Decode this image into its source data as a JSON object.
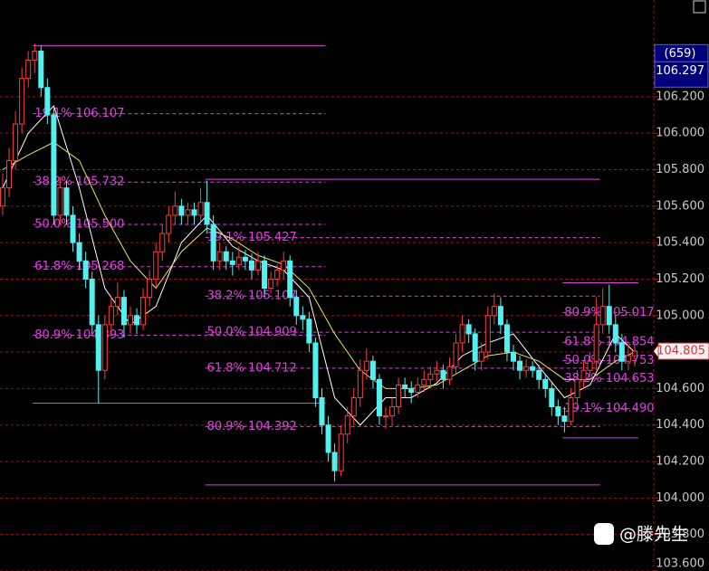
{
  "chart_data": {
    "type": "candlestick",
    "ylim": [
      103.6,
      106.73
    ],
    "yticks": [
      {
        "value": 103.6,
        "label": "103.600"
      },
      {
        "value": 103.8,
        "label": "103.800"
      },
      {
        "value": 104.0,
        "label": "104.000"
      },
      {
        "value": 104.2,
        "label": "104.200"
      },
      {
        "value": 104.4,
        "label": "104.400"
      },
      {
        "value": 104.6,
        "label": "104.600"
      },
      {
        "value": 104.8,
        "label": "104.800"
      },
      {
        "value": 105.0,
        "label": "105.000"
      },
      {
        "value": 105.2,
        "label": "105.200"
      },
      {
        "value": 105.4,
        "label": "105.400"
      },
      {
        "value": 105.6,
        "label": "105.600"
      },
      {
        "value": 105.8,
        "label": "105.800"
      },
      {
        "value": 106.0,
        "label": "106.000"
      },
      {
        "value": 106.2,
        "label": "106.200"
      }
    ],
    "grid": true,
    "up_color": "#ff3c3c",
    "down_color": "#54f0f0",
    "fib_color": "#e040e0",
    "candles": [
      [
        105.6,
        105.78,
        105.55,
        105.7
      ],
      [
        105.7,
        105.92,
        105.65,
        105.85
      ],
      [
        105.85,
        106.12,
        105.8,
        106.05
      ],
      [
        106.05,
        106.36,
        106.0,
        106.3
      ],
      [
        106.3,
        106.45,
        106.25,
        106.4
      ],
      [
        106.4,
        106.49,
        106.33,
        106.45
      ],
      [
        106.45,
        106.48,
        106.2,
        106.25
      ],
      [
        106.25,
        106.3,
        106.05,
        106.1
      ],
      [
        106.1,
        106.15,
        105.5,
        105.55
      ],
      [
        105.55,
        105.76,
        105.5,
        105.7
      ],
      [
        105.7,
        105.74,
        105.5,
        105.55
      ],
      [
        105.55,
        105.6,
        105.35,
        105.4
      ],
      [
        105.4,
        105.45,
        105.25,
        105.3
      ],
      [
        105.3,
        105.35,
        105.15,
        105.2
      ],
      [
        105.2,
        105.24,
        104.9,
        104.95
      ],
      [
        104.95,
        105.0,
        104.52,
        104.7
      ],
      [
        104.7,
        105.0,
        104.65,
        104.95
      ],
      [
        104.95,
        105.1,
        104.9,
        105.05
      ],
      [
        105.05,
        105.18,
        105.0,
        105.1
      ],
      [
        105.1,
        105.14,
        104.88,
        104.95
      ],
      [
        104.95,
        105.05,
        104.9,
        105.0
      ],
      [
        105.0,
        105.04,
        104.9,
        104.95
      ],
      [
        104.95,
        105.15,
        104.92,
        105.1
      ],
      [
        105.1,
        105.25,
        105.05,
        105.2
      ],
      [
        105.2,
        105.4,
        105.15,
        105.35
      ],
      [
        105.35,
        105.5,
        105.3,
        105.45
      ],
      [
        105.45,
        105.6,
        105.4,
        105.55
      ],
      [
        105.55,
        105.68,
        105.5,
        105.6
      ],
      [
        105.6,
        105.64,
        105.5,
        105.55
      ],
      [
        105.55,
        105.62,
        105.5,
        105.58
      ],
      [
        105.58,
        105.62,
        105.5,
        105.55
      ],
      [
        105.55,
        105.7,
        105.52,
        105.62
      ],
      [
        105.62,
        105.74,
        105.45,
        105.5
      ],
      [
        105.5,
        105.55,
        105.25,
        105.3
      ],
      [
        105.3,
        105.4,
        105.25,
        105.35
      ],
      [
        105.35,
        105.38,
        105.25,
        105.3
      ],
      [
        105.3,
        105.35,
        105.22,
        105.28
      ],
      [
        105.28,
        105.38,
        105.25,
        105.32
      ],
      [
        105.32,
        105.36,
        105.25,
        105.3
      ],
      [
        105.3,
        105.34,
        105.2,
        105.25
      ],
      [
        105.25,
        105.35,
        105.22,
        105.3
      ],
      [
        105.3,
        105.33,
        105.1,
        105.15
      ],
      [
        105.15,
        105.24,
        105.12,
        105.2
      ],
      [
        105.2,
        105.28,
        105.16,
        105.25
      ],
      [
        105.25,
        105.35,
        105.2,
        105.3
      ],
      [
        105.3,
        105.33,
        105.05,
        105.1
      ],
      [
        105.1,
        105.14,
        104.95,
        105.0
      ],
      [
        105.0,
        105.05,
        104.92,
        104.98
      ],
      [
        104.98,
        105.02,
        104.8,
        104.85
      ],
      [
        104.85,
        104.88,
        104.5,
        104.55
      ],
      [
        104.55,
        104.6,
        104.35,
        104.4
      ],
      [
        104.4,
        104.45,
        104.2,
        104.25
      ],
      [
        104.25,
        104.3,
        104.09,
        104.15
      ],
      [
        104.15,
        104.4,
        104.12,
        104.35
      ],
      [
        104.35,
        104.5,
        104.3,
        104.45
      ],
      [
        104.45,
        104.6,
        104.4,
        104.55
      ],
      [
        104.55,
        104.76,
        104.5,
        104.7
      ],
      [
        104.7,
        104.82,
        104.65,
        104.75
      ],
      [
        104.75,
        104.78,
        104.6,
        104.65
      ],
      [
        104.65,
        104.68,
        104.4,
        104.45
      ],
      [
        104.45,
        104.5,
        104.38,
        104.45
      ],
      [
        104.45,
        104.55,
        104.4,
        104.5
      ],
      [
        104.5,
        104.66,
        104.46,
        104.62
      ],
      [
        104.62,
        104.66,
        104.55,
        104.6
      ],
      [
        104.6,
        104.64,
        104.52,
        104.58
      ],
      [
        104.58,
        104.66,
        104.55,
        104.62
      ],
      [
        104.62,
        104.7,
        104.58,
        104.65
      ],
      [
        104.65,
        104.72,
        104.6,
        104.68
      ],
      [
        104.68,
        104.75,
        104.64,
        104.7
      ],
      [
        104.7,
        104.73,
        104.6,
        104.65
      ],
      [
        104.65,
        104.77,
        104.62,
        104.72
      ],
      [
        104.72,
        104.9,
        104.68,
        104.85
      ],
      [
        104.85,
        105.0,
        104.8,
        104.95
      ],
      [
        104.95,
        104.98,
        104.85,
        104.9
      ],
      [
        104.9,
        104.93,
        104.7,
        104.75
      ],
      [
        104.75,
        104.85,
        104.7,
        104.8
      ],
      [
        104.8,
        105.05,
        104.76,
        105.0
      ],
      [
        105.0,
        105.12,
        104.95,
        105.05
      ],
      [
        105.05,
        105.1,
        104.9,
        104.95
      ],
      [
        104.95,
        104.98,
        104.75,
        104.8
      ],
      [
        104.8,
        104.84,
        104.7,
        104.75
      ],
      [
        104.75,
        104.78,
        104.65,
        104.7
      ],
      [
        104.7,
        104.76,
        104.66,
        104.72
      ],
      [
        104.72,
        104.75,
        104.66,
        104.7
      ],
      [
        104.7,
        104.73,
        104.6,
        104.65
      ],
      [
        104.65,
        104.68,
        104.55,
        104.6
      ],
      [
        104.6,
        104.63,
        104.45,
        104.5
      ],
      [
        104.5,
        104.54,
        104.4,
        104.45
      ],
      [
        104.45,
        104.5,
        104.36,
        104.42
      ],
      [
        104.42,
        104.6,
        104.4,
        104.55
      ],
      [
        104.55,
        104.7,
        104.52,
        104.65
      ],
      [
        104.65,
        104.75,
        104.6,
        104.7
      ],
      [
        104.7,
        104.8,
        104.66,
        104.75
      ],
      [
        104.75,
        105.1,
        104.7,
        104.95
      ],
      [
        104.95,
        105.15,
        104.9,
        105.05
      ],
      [
        105.05,
        105.17,
        104.9,
        104.95
      ],
      [
        104.95,
        105.0,
        104.8,
        104.85
      ],
      [
        104.85,
        104.9,
        104.7,
        104.75
      ],
      [
        104.75,
        104.85,
        104.7,
        104.78
      ],
      [
        104.78,
        104.84,
        104.72,
        104.805
      ]
    ],
    "series": [
      {
        "color": "#ffffff",
        "x": [
          0,
          4,
          8,
          12,
          16,
          20,
          24,
          28,
          32,
          36,
          40,
          44,
          48,
          52,
          56,
          60,
          64,
          68,
          72,
          76,
          80,
          84,
          88,
          92,
          96,
          99
        ],
        "values": [
          105.7,
          106.0,
          106.15,
          105.7,
          105.15,
          104.95,
          105.05,
          105.4,
          105.55,
          105.38,
          105.3,
          105.25,
          105.1,
          104.55,
          104.4,
          104.55,
          104.55,
          104.63,
          104.78,
          104.85,
          104.9,
          104.72,
          104.55,
          104.62,
          104.9,
          104.8
        ]
      },
      {
        "color": "#e8e060",
        "x": [
          0,
          4,
          8,
          12,
          16,
          20,
          24,
          28,
          32,
          36,
          40,
          44,
          48,
          52,
          56,
          60,
          64,
          68,
          72,
          76,
          80,
          84,
          88,
          92,
          96,
          99
        ],
        "values": [
          105.8,
          105.88,
          105.95,
          105.85,
          105.55,
          105.3,
          105.15,
          105.35,
          105.48,
          105.42,
          105.33,
          105.28,
          105.15,
          104.9,
          104.7,
          104.6,
          104.6,
          104.62,
          104.7,
          104.78,
          104.8,
          104.75,
          104.65,
          104.65,
          104.75,
          104.8
        ]
      }
    ],
    "fibonacci": [
      {
        "from": 5,
        "to": 50,
        "high": 106.48,
        "low": 104.52,
        "levels": [
          {
            "value": 106.107,
            "label": "19.1% 106.107"
          },
          {
            "value": 105.732,
            "label": "38.2% 105.732"
          },
          {
            "value": 105.5,
            "label": "50.0% 105.500"
          },
          {
            "value": 105.268,
            "label": "61.8% 105.268"
          },
          {
            "value": 104.893,
            "label": "80.9% 104.893"
          }
        ]
      },
      {
        "from": 32,
        "to": 93,
        "high": 105.747,
        "low": 104.072,
        "levels": [
          {
            "value": 105.427,
            "label": "19.1% 105.427"
          },
          {
            "value": 105.107,
            "label": "38.2% 105.107"
          },
          {
            "value": 104.909,
            "label": "50.0% 104.909"
          },
          {
            "value": 104.712,
            "label": "61.8% 104.712"
          },
          {
            "value": 104.392,
            "label": "80.9% 104.392"
          }
        ]
      },
      {
        "from": 88,
        "to": 99,
        "high": 105.18,
        "low": 104.33,
        "levels": [
          {
            "value": 105.017,
            "label": "80.9% 105.017"
          },
          {
            "value": 104.854,
            "label": "61.8% 104.854"
          },
          {
            "value": 104.753,
            "label": "50.0% 104.753"
          },
          {
            "value": 104.653,
            "label": "38.2% 104.653"
          },
          {
            "value": 104.49,
            "label": "19.1% 104.490"
          }
        ]
      }
    ],
    "last_price": 104.805,
    "cursor_count": "(659)",
    "cursor_price": 106.297,
    "watermark": "@滕先生"
  }
}
